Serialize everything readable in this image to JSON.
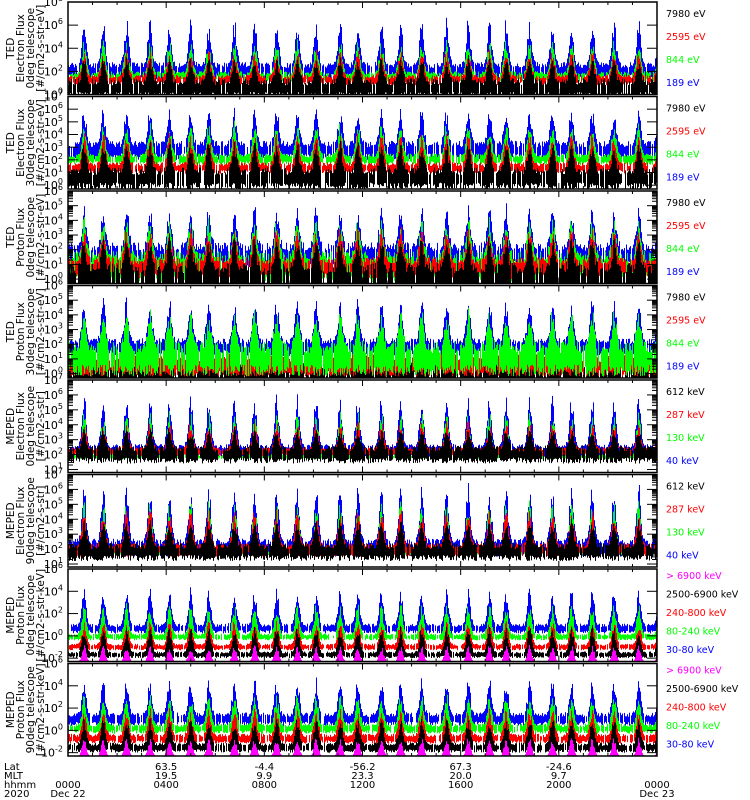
{
  "colors": {
    "black": "#000000",
    "red": "#ff0000",
    "green": "#00ff00",
    "blue": "#0000ff",
    "magenta": "#ff00ff"
  },
  "chart_data": [
    {
      "type": "line",
      "ylabel": [
        "TED",
        "Electron Flux",
        "0deg telescope",
        "[#/cm2-s-str-eV]"
      ],
      "yscale": "log",
      "ylim_exp": [
        0,
        8
      ],
      "ytick_exps": [
        0,
        2,
        4,
        6,
        8
      ],
      "minor_log_ticks": false,
      "legend": [
        {
          "label": "7980 eV",
          "color": "#000000"
        },
        {
          "label": "2595 eV",
          "color": "#ff0000"
        },
        {
          "label": "844 eV",
          "color": "#00ff00"
        },
        {
          "label": "189 eV",
          "color": "#0000ff"
        }
      ],
      "series_profile": [
        {
          "color": "#0000ff",
          "base_exp": 2.3,
          "peak_exp": 6.3,
          "spread": 0.5
        },
        {
          "color": "#00ff00",
          "base_exp": 1.7,
          "peak_exp": 4.6,
          "spread": 0.3
        },
        {
          "color": "#ff0000",
          "base_exp": 1.4,
          "peak_exp": 3.7,
          "spread": 0.3
        },
        {
          "color": "#000000",
          "base_exp": 0.8,
          "peak_exp": 3.0,
          "spread": 0.6
        }
      ]
    },
    {
      "type": "line",
      "ylabel": [
        "TED",
        "Electron Flux",
        "30deg telescope",
        "[#/cm2-s-str-eV]"
      ],
      "yscale": "log",
      "ylim_exp": [
        -0.3,
        7
      ],
      "ytick_exps": [
        0,
        1,
        2,
        3,
        4,
        5,
        6,
        7
      ],
      "minor_log_ticks": false,
      "legend": [
        {
          "label": "7980 eV",
          "color": "#000000"
        },
        {
          "label": "2595 eV",
          "color": "#ff0000"
        },
        {
          "label": "844 eV",
          "color": "#00ff00"
        },
        {
          "label": "189 eV",
          "color": "#0000ff"
        }
      ],
      "series_profile": [
        {
          "color": "#0000ff",
          "base_exp": 3.0,
          "peak_exp": 5.8,
          "spread": 0.5
        },
        {
          "color": "#00ff00",
          "base_exp": 2.2,
          "peak_exp": 4.8,
          "spread": 0.3
        },
        {
          "color": "#ff0000",
          "base_exp": 1.5,
          "peak_exp": 4.0,
          "spread": 0.3
        },
        {
          "color": "#000000",
          "base_exp": 0.8,
          "peak_exp": 3.2,
          "spread": 0.6
        }
      ]
    },
    {
      "type": "line",
      "ylabel": [
        "TED",
        "Proton Flux",
        "0deg telescope",
        "[#/cm2-s-str-eV]"
      ],
      "yscale": "log",
      "ylim_exp": [
        -0.3,
        6
      ],
      "ytick_exps": [
        0,
        1,
        2,
        3,
        4,
        5,
        6
      ],
      "minor_log_ticks": true,
      "legend": [
        {
          "label": "7980 eV",
          "color": "#000000"
        },
        {
          "label": "2595 eV",
          "color": "#ff0000"
        },
        {
          "label": "844 eV",
          "color": "#00ff00"
        },
        {
          "label": "189 eV",
          "color": "#0000ff"
        }
      ],
      "series_profile": [
        {
          "color": "#0000ff",
          "base_exp": 1.9,
          "peak_exp": 4.7,
          "spread": 0.6
        },
        {
          "color": "#00ff00",
          "base_exp": 1.2,
          "peak_exp": 3.9,
          "spread": 0.7
        },
        {
          "color": "#ff0000",
          "base_exp": 1.0,
          "peak_exp": 3.3,
          "spread": 0.5
        },
        {
          "color": "#000000",
          "base_exp": 0.4,
          "peak_exp": 2.5,
          "spread": 0.7
        }
      ]
    },
    {
      "type": "line",
      "ylabel": [
        "TED",
        "Proton Flux",
        "30deg telescope",
        "[#/cm2-s-str-eV]"
      ],
      "yscale": "log",
      "ylim_exp": [
        -0.3,
        6
      ],
      "ytick_exps": [
        0,
        1,
        2,
        3,
        4,
        5,
        6
      ],
      "minor_log_ticks": true,
      "legend": [
        {
          "label": "7980 eV",
          "color": "#000000"
        },
        {
          "label": "2595 eV",
          "color": "#ff0000"
        },
        {
          "label": "844 eV",
          "color": "#00ff00"
        },
        {
          "label": "189 eV",
          "color": "#0000ff"
        }
      ],
      "series_profile": [
        {
          "color": "#0000ff",
          "base_exp": 2.0,
          "peak_exp": 5.0,
          "spread": 0.4
        },
        {
          "color": "#000000",
          "base_exp": 0.3,
          "peak_exp": 2.0,
          "spread": 0.6
        },
        {
          "color": "#ff0000",
          "base_exp": 0.8,
          "peak_exp": 2.8,
          "spread": 0.5
        },
        {
          "color": "#00ff00",
          "base_exp": 1.4,
          "peak_exp": 3.8,
          "spread": 0.8
        }
      ]
    },
    {
      "type": "line",
      "ylabel": [
        "MEPED",
        "Electron Flux",
        "0deg telescope",
        "[#/cm2-s-str]"
      ],
      "yscale": "log",
      "ylim_exp": [
        0.8,
        7
      ],
      "ytick_exps": [
        1,
        2,
        3,
        4,
        5,
        6,
        7
      ],
      "minor_log_ticks": true,
      "legend": [
        {
          "label": "612 keV",
          "color": "#000000"
        },
        {
          "label": "287 keV",
          "color": "#ff0000"
        },
        {
          "label": "130 keV",
          "color": "#00ff00"
        },
        {
          "label": "40 keV",
          "color": "#0000ff"
        }
      ],
      "series_profile": [
        {
          "color": "#0000ff",
          "base_exp": 2.4,
          "peak_exp": 6.0,
          "spread": 0.3
        },
        {
          "color": "#00ff00",
          "base_exp": 1.9,
          "peak_exp": 5.0,
          "spread": 0.1
        },
        {
          "color": "#ff0000",
          "base_exp": 2.3,
          "peak_exp": 4.2,
          "spread": 0.2
        },
        {
          "color": "#000000",
          "base_exp": 2.2,
          "peak_exp": 3.6,
          "spread": 0.4
        }
      ]
    },
    {
      "type": "line",
      "ylabel": [
        "MEPED",
        "Electron Flux",
        "90deg telescope",
        "[#/cm2-s-str]"
      ],
      "yscale": "log",
      "ylim_exp": [
        0.8,
        7
      ],
      "ytick_exps": [
        1,
        2,
        3,
        4,
        5,
        6,
        7
      ],
      "minor_log_ticks": true,
      "legend": [
        {
          "label": "612 keV",
          "color": "#000000"
        },
        {
          "label": "287 keV",
          "color": "#ff0000"
        },
        {
          "label": "130 keV",
          "color": "#00ff00"
        },
        {
          "label": "40 keV",
          "color": "#0000ff"
        }
      ],
      "series_profile": [
        {
          "color": "#0000ff",
          "base_exp": 2.3,
          "peak_exp": 6.2,
          "spread": 0.4
        },
        {
          "color": "#00ff00",
          "base_exp": 1.8,
          "peak_exp": 5.3,
          "spread": 0.1
        },
        {
          "color": "#ff0000",
          "base_exp": 2.1,
          "peak_exp": 4.6,
          "spread": 0.3
        },
        {
          "color": "#000000",
          "base_exp": 2.0,
          "peak_exp": 3.8,
          "spread": 0.4
        }
      ]
    },
    {
      "type": "line",
      "ylabel": [
        "MEPED",
        "Proton Flux",
        "0deg telescope",
        "[#/cm2-s-str-keV]"
      ],
      "yscale": "log",
      "ylim_exp": [
        -2.3,
        6
      ],
      "ytick_exps": [
        -2,
        0,
        2,
        4,
        6
      ],
      "minor_log_ticks": false,
      "legend": [
        {
          "label": "> 6900 keV",
          "color": "#ff00ff"
        },
        {
          "label": "2500-6900 keV",
          "color": "#000000"
        },
        {
          "label": "240-800 keV",
          "color": "#ff0000"
        },
        {
          "label": "80-240 keV",
          "color": "#00ff00"
        },
        {
          "label": "30-80 keV",
          "color": "#0000ff"
        }
      ],
      "series_profile": [
        {
          "color": "#0000ff",
          "base_exp": 0.8,
          "peak_exp": 4.2,
          "spread": 0.3
        },
        {
          "color": "#00ff00",
          "base_exp": 0.0,
          "peak_exp": 2.8,
          "spread": 0.2
        },
        {
          "color": "#ff0000",
          "base_exp": -0.9,
          "peak_exp": 1.3,
          "spread": 0.2
        },
        {
          "color": "#000000",
          "base_exp": -1.6,
          "peak_exp": 0.8,
          "spread": 0.2
        },
        {
          "color": "#ff00ff",
          "base_exp": -2.3,
          "peak_exp": -0.8,
          "spread": 0.0
        }
      ]
    },
    {
      "type": "line",
      "ylabel": [
        "MEPED",
        "Proton Flux",
        "90deg telescope",
        "[#/cm2-s-str-keV]"
      ],
      "yscale": "log",
      "ylim_exp": [
        -2.3,
        6
      ],
      "ytick_exps": [
        -2,
        0,
        2,
        4,
        6
      ],
      "minor_log_ticks": false,
      "legend": [
        {
          "label": "> 6900 keV",
          "color": "#ff00ff"
        },
        {
          "label": "2500-6900 keV",
          "color": "#000000"
        },
        {
          "label": "240-800 keV",
          "color": "#ff0000"
        },
        {
          "label": "80-240 keV",
          "color": "#00ff00"
        },
        {
          "label": "30-80 keV",
          "color": "#0000ff"
        }
      ],
      "series_profile": [
        {
          "color": "#0000ff",
          "base_exp": 1.2,
          "peak_exp": 4.5,
          "spread": 0.4
        },
        {
          "color": "#00ff00",
          "base_exp": 0.3,
          "peak_exp": 3.2,
          "spread": 0.3
        },
        {
          "color": "#ff0000",
          "base_exp": -0.6,
          "peak_exp": 1.8,
          "spread": 0.3
        },
        {
          "color": "#000000",
          "base_exp": -1.4,
          "peak_exp": 1.0,
          "spread": 0.3
        },
        {
          "color": "#ff00ff",
          "base_exp": -2.3,
          "peak_exp": -0.6,
          "spread": 0.0
        }
      ]
    }
  ],
  "x_axis": {
    "range_hours": [
      0,
      24
    ],
    "major_tick_hours": [
      0,
      4,
      8,
      12,
      16,
      20,
      24
    ],
    "minor_tick_hours": [
      1,
      2,
      3,
      5,
      6,
      7,
      9,
      10,
      11,
      13,
      14,
      15,
      17,
      18,
      19,
      21,
      22,
      23
    ],
    "row_labels": [
      "Lat",
      "MLT",
      "hhmm",
      "2020"
    ],
    "ticks": [
      {
        "hour": 0,
        "lat": "",
        "mlt": "",
        "hhmm": "0000",
        "date": "Dec 22"
      },
      {
        "hour": 4,
        "lat": "63.5",
        "mlt": "19.5",
        "hhmm": "0400",
        "date": ""
      },
      {
        "hour": 8,
        "lat": "-4.4",
        "mlt": "9.9",
        "hhmm": "0800",
        "date": ""
      },
      {
        "hour": 12,
        "lat": "-56.2",
        "mlt": "23.3",
        "hhmm": "1200",
        "date": ""
      },
      {
        "hour": 16,
        "lat": "67.3",
        "mlt": "20.0",
        "hhmm": "1600",
        "date": ""
      },
      {
        "hour": 20,
        "lat": "-24.6",
        "mlt": "9.7",
        "hhmm": "2000",
        "date": ""
      },
      {
        "hour": 24,
        "lat": "",
        "mlt": "",
        "hhmm": "0000",
        "date": "Dec 23"
      }
    ],
    "orbit_pass_count": 28
  }
}
